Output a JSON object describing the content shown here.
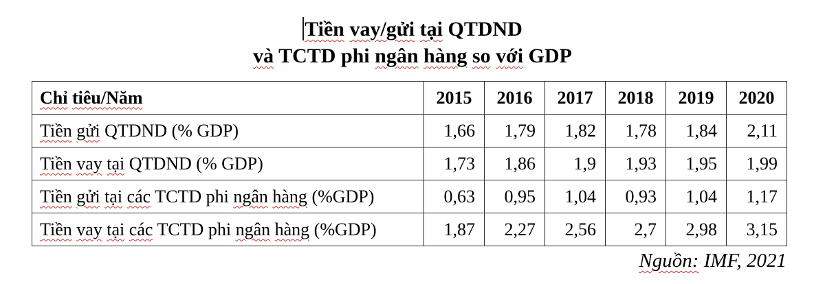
{
  "colors": {
    "background": "#ffffff",
    "text": "#000000",
    "table_border": "#2b2b2b",
    "spellcheck_underline": "#cc3126"
  },
  "title": {
    "full_text": "Tiền vay/gửi tại QTDND và TCTD phi ngân hàng so với GDP",
    "lines": [
      {
        "words": [
          {
            "t": "Tiền",
            "m": true
          },
          {
            "t": "vay/gửi",
            "m": true
          },
          {
            "t": "tại",
            "m": true
          },
          {
            "t": "QTDND",
            "m": false
          }
        ]
      },
      {
        "words": [
          {
            "t": "và",
            "m": true
          },
          {
            "t": "TCTD",
            "m": false
          },
          {
            "t": "phi",
            "m": false
          },
          {
            "t": "ngân",
            "m": true
          },
          {
            "t": "hàng",
            "m": true
          },
          {
            "t": "so",
            "m": true
          },
          {
            "t": "với",
            "m": true
          },
          {
            "t": "GDP",
            "m": false
          }
        ]
      }
    ]
  },
  "table": {
    "header": {
      "label": "Chỉ tiêu/Năm",
      "label_words": [
        {
          "t": "Chỉ",
          "m": true
        },
        {
          "t": "tiêu/Năm",
          "m": true
        }
      ],
      "years": [
        "2015",
        "2016",
        "2017",
        "2018",
        "2019",
        "2020"
      ]
    },
    "rows": [
      {
        "label": "Tiền gửi QTDND (% GDP)",
        "label_words": [
          {
            "t": "Tiền",
            "m": true
          },
          {
            "t": "gửi",
            "m": true
          },
          {
            "t": "QTDND",
            "m": false
          },
          {
            "t": "(%",
            "m": false
          },
          {
            "t": "GDP)",
            "m": false
          }
        ],
        "values": [
          "1,66",
          "1,79",
          "1,82",
          "1,78",
          "1,84",
          "2,11"
        ]
      },
      {
        "label": "Tiền vay tại QTDND (% GDP)",
        "label_words": [
          {
            "t": "Tiền",
            "m": true
          },
          {
            "t": "vay",
            "m": true
          },
          {
            "t": "tại",
            "m": true
          },
          {
            "t": "QTDND",
            "m": false
          },
          {
            "t": "(%",
            "m": false
          },
          {
            "t": "GDP)",
            "m": false
          }
        ],
        "values": [
          "1,73",
          "1,86",
          "1,9",
          "1,93",
          "1,95",
          "1,99"
        ]
      },
      {
        "label": "Tiền gửi tại các TCTD phi ngân hàng (%GDP)",
        "label_words": [
          {
            "t": "Tiền",
            "m": true
          },
          {
            "t": "gửi",
            "m": true
          },
          {
            "t": "tại",
            "m": true
          },
          {
            "t": "các",
            "m": true
          },
          {
            "t": "TCTD",
            "m": false
          },
          {
            "t": "phi",
            "m": false
          },
          {
            "t": "ngân",
            "m": true
          },
          {
            "t": "hàng",
            "m": true
          },
          {
            "t": "(%GDP)",
            "m": false
          }
        ],
        "values": [
          "0,63",
          "0,95",
          "1,04",
          "0,93",
          "1,04",
          "1,17"
        ]
      },
      {
        "label": "Tiền vay tại các TCTD phi ngân hàng (%GDP)",
        "label_words": [
          {
            "t": "Tiền",
            "m": true
          },
          {
            "t": "vay",
            "m": true
          },
          {
            "t": "tại",
            "m": true
          },
          {
            "t": "các",
            "m": true
          },
          {
            "t": "TCTD",
            "m": false
          },
          {
            "t": "phi",
            "m": false
          },
          {
            "t": "ngân",
            "m": true
          },
          {
            "t": "hàng",
            "m": true
          },
          {
            "t": "(%GDP)",
            "m": false
          }
        ],
        "values": [
          "1,87",
          "2,27",
          "2,56",
          "2,7",
          "2,98",
          "3,15"
        ]
      }
    ]
  },
  "source": {
    "text": "Nguồn: IMF, 2021",
    "words": [
      {
        "t": "Nguồn:",
        "m": true
      },
      {
        "t": "IMF,",
        "m": false
      },
      {
        "t": "2021",
        "m": false
      }
    ]
  }
}
